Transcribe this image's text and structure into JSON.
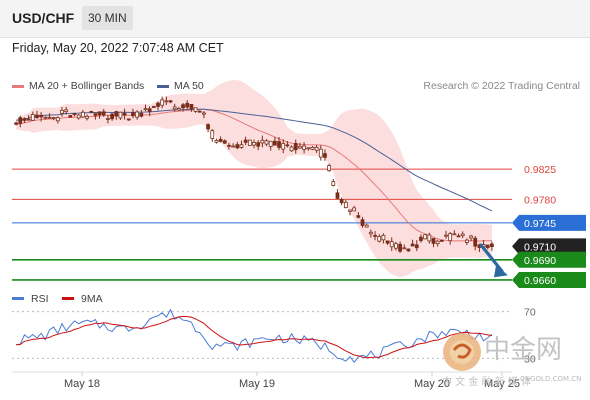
{
  "header": {
    "symbol": "USD/CHF",
    "timeframe": "30 MIN"
  },
  "datetime": "Friday, May 20, 2022 7:07:48 AM CET",
  "legend": {
    "ma20_bb_label": "MA 20 + Bollinger Bands",
    "ma50_label": "MA 50",
    "research": "Research © 2022 Trading Central",
    "rsi_label": "RSI",
    "rsi_ma_label": "9MA"
  },
  "colors": {
    "candle": "#7a2e1a",
    "bollinger": "#fbd3d3",
    "ma20": "#e67b7b",
    "ma50": "#4a5f96",
    "resistance": "#e0463c",
    "pivot": "#2b6fd6",
    "support": "#1a8a1a",
    "rsi": "#4a7bd6",
    "rsi_ma": "#cc1111",
    "arrow": "#2b6aa0"
  },
  "chart_data": [
    {
      "type": "candlestick",
      "x_tick_labels": [
        "May 18",
        "May 19",
        "May 20",
        "May 25"
      ],
      "ylim": [
        0.9648,
        0.9934
      ],
      "series": [
        {
          "name": "MA 20 + Bollinger Bands"
        },
        {
          "name": "MA 50"
        }
      ],
      "price_levels": [
        {
          "label": "0.9825",
          "value": 0.9825,
          "kind": "resistance"
        },
        {
          "label": "0.9780",
          "value": 0.978,
          "kind": "resistance"
        },
        {
          "label": "0.9745",
          "value": 0.9745,
          "kind": "pivot"
        },
        {
          "label": "0.9710",
          "value": 0.971,
          "kind": "last"
        },
        {
          "label": "0.9690",
          "value": 0.969,
          "kind": "support"
        },
        {
          "label": "0.9660",
          "value": 0.966,
          "kind": "support"
        }
      ]
    },
    {
      "type": "line",
      "ylim": [
        20,
        80
      ],
      "y_tick_labels": [
        "70",
        "30"
      ],
      "series": [
        {
          "name": "RSI"
        },
        {
          "name": "9MA"
        }
      ]
    }
  ],
  "watermark": {
    "brand": "中金网",
    "tagline": "中 文 金 融 新 媒 体",
    "site": "CNGOLD.COM.CN"
  }
}
